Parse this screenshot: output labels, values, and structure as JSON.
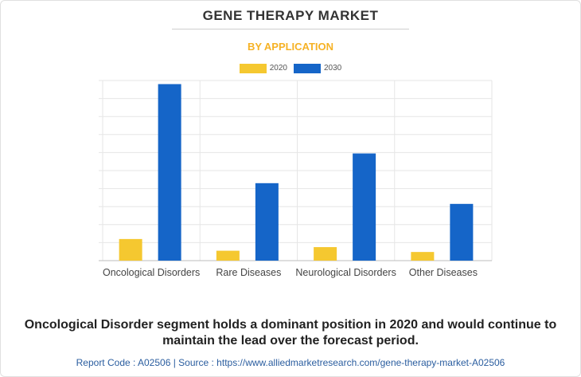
{
  "header": {
    "title": "GENE THERAPY MARKET",
    "subtitle": "BY APPLICATION"
  },
  "colors": {
    "series_2020": "#f5c830",
    "series_2030": "#1565c8",
    "subtitle": "#f6b225",
    "footer": "#2a5d9f"
  },
  "chart_data": {
    "type": "bar",
    "title": "GENE THERAPY MARKET",
    "subtitle": "BY APPLICATION",
    "categories": [
      "Oncological Disorders",
      "Rare Diseases",
      "Neurological Disorders",
      "Other Diseases"
    ],
    "series": [
      {
        "name": "2020",
        "values": [
          1.2,
          0.55,
          0.75,
          0.48
        ]
      },
      {
        "name": "2030",
        "values": [
          9.8,
          4.3,
          5.95,
          3.15
        ]
      }
    ],
    "xlabel": "",
    "ylabel": "",
    "ylim": [
      0,
      10
    ],
    "grid": true,
    "legend": "top-center"
  },
  "caption": {
    "line1": "Oncological Disorder segment holds a dominant position in 2020 and would continue to",
    "line2": "maintain the lead over the forecast period."
  },
  "footer": {
    "text": "Report Code : A02506  |  Source : https://www.alliedmarketresearch.com/gene-therapy-market-A02506"
  }
}
